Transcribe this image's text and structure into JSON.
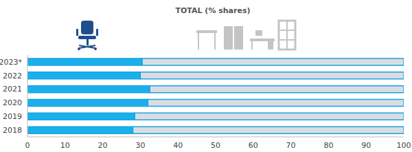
{
  "chart_data": {
    "type": "bar",
    "title": "TOTAL (% shares)",
    "orientation": "horizontal",
    "stacked": true,
    "categories": [
      "2023*",
      "2022",
      "2021",
      "2020",
      "2019",
      "2018"
    ],
    "series": [
      {
        "color": "#1ab0ee",
        "values": [
          30.5,
          30,
          32.5,
          32,
          28.5,
          28
        ]
      },
      {
        "color": "#d9dde3",
        "values": [
          69.5,
          70,
          67.5,
          68,
          71.5,
          72
        ]
      }
    ],
    "xlim": [
      0,
      100
    ],
    "xticks": [
      0,
      10,
      20,
      30,
      40,
      50,
      60,
      70,
      80,
      90,
      100
    ]
  }
}
